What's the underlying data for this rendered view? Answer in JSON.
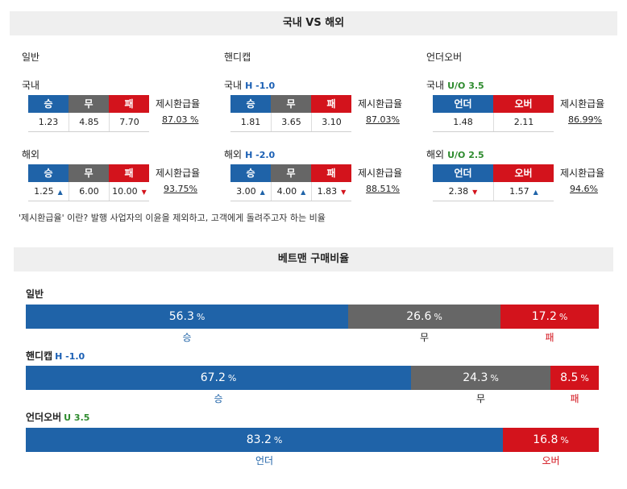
{
  "header": {
    "title": "국내 VS 해외"
  },
  "general": {
    "title": "일반",
    "rate_label": "제시환급율",
    "cols": [
      "승",
      "무",
      "패"
    ],
    "domestic": {
      "label": "국내",
      "values": [
        "1.23",
        "4.85",
        "7.70"
      ],
      "rate": "87.03 %"
    },
    "overseas": {
      "label": "해외",
      "values": [
        "1.25",
        "6.00",
        "10.00"
      ],
      "rate": "93.75%"
    }
  },
  "handicap": {
    "title": "핸디캡",
    "rate_label": "제시환급율",
    "cols": [
      "승",
      "무",
      "패"
    ],
    "domestic": {
      "label": "국내",
      "line": "H -1.0",
      "values": [
        "1.81",
        "3.65",
        "3.10"
      ],
      "rate": "87.03%"
    },
    "overseas": {
      "label": "해외",
      "line": "H -2.0",
      "values": [
        "3.00",
        "4.00",
        "1.83"
      ],
      "rate": "88.51%"
    }
  },
  "overunder": {
    "title": "언더오버",
    "rate_label": "제시환급율",
    "cols": [
      "언더",
      "오버"
    ],
    "domestic": {
      "label": "국내",
      "line": "U/O 3.5",
      "values": [
        "1.48",
        "2.11"
      ],
      "rate": "86.99%"
    },
    "overseas": {
      "label": "해외",
      "line": "U/O 2.5",
      "values": [
        "2.38",
        "1.57"
      ],
      "rate": "94.6%"
    }
  },
  "note": "'제시환급율' 이란? 발행 사업자의 이윤을 제외하고, 고객에게 돌려주고자 하는 비율",
  "betman": {
    "title": "베트맨 구매비율",
    "pct_unit": "%",
    "general": {
      "title": "일반",
      "segments": [
        {
          "value": "56.3",
          "label": "승"
        },
        {
          "value": "26.6",
          "label": "무"
        },
        {
          "value": "17.2",
          "label": "패"
        }
      ]
    },
    "handicap": {
      "title": "핸디캡",
      "line": "H -1.0",
      "segments": [
        {
          "value": "67.2",
          "label": "승"
        },
        {
          "value": "24.3",
          "label": "무"
        },
        {
          "value": "8.5",
          "label": "패"
        }
      ]
    },
    "overunder": {
      "title": "언더오버",
      "line": "U 3.5",
      "segments": [
        {
          "value": "83.2",
          "label": "언더"
        },
        {
          "value": "16.8",
          "label": "오버"
        }
      ]
    }
  },
  "colors": {
    "blue": "#1f63a8",
    "gray": "#666666",
    "red": "#d3131c",
    "green": "#2e8b2e"
  },
  "icons": {
    "up": "triangle-up-icon",
    "down": "triangle-down-icon"
  }
}
